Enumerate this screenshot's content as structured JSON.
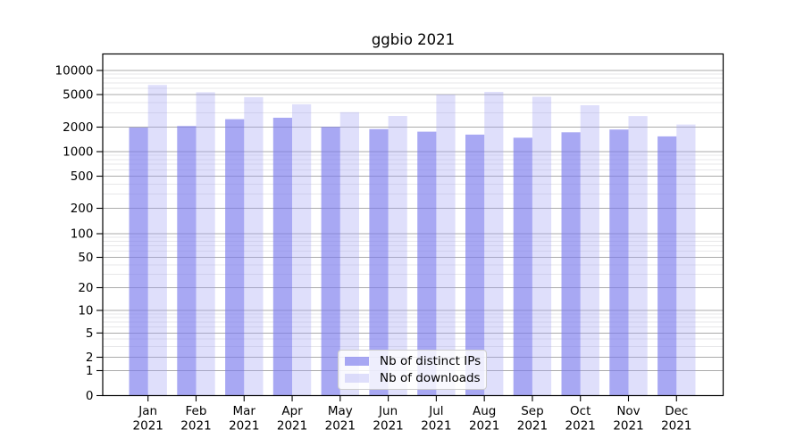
{
  "title": "ggbio 2021",
  "chart_data": {
    "type": "bar",
    "title": "ggbio 2021",
    "yscale": "symlog",
    "grid": true,
    "legend_position": "lower center",
    "xlabel": "",
    "ylabel": "",
    "y_ticks": [
      0,
      1,
      2,
      5,
      10,
      20,
      50,
      100,
      200,
      500,
      1000,
      2000,
      5000,
      10000
    ],
    "ylim": [
      0,
      15000
    ],
    "categories": [
      "Jan 2021",
      "Feb 2021",
      "Mar 2021",
      "Apr 2021",
      "May 2021",
      "Jun 2021",
      "Jul 2021",
      "Aug 2021",
      "Sep 2021",
      "Oct 2021",
      "Nov 2021",
      "Dec 2021"
    ],
    "series": [
      {
        "name": "Nb of distinct IPs",
        "color": "#7b7bed",
        "opacity": 0.66,
        "values": [
          1980,
          2060,
          2500,
          2600,
          2010,
          1890,
          1760,
          1620,
          1480,
          1730,
          1870,
          1540
        ]
      },
      {
        "name": "Nb of downloads",
        "color": "#a4a4f3",
        "opacity": 0.35,
        "values": [
          6600,
          5350,
          4650,
          3800,
          3050,
          2740,
          5000,
          5400,
          4700,
          3700,
          2730,
          2150
        ]
      }
    ]
  },
  "colors": {
    "grid_major": "#ababab",
    "grid_minor": "#e7e7e9",
    "axis": "#000000",
    "background": "#ffffff"
  }
}
